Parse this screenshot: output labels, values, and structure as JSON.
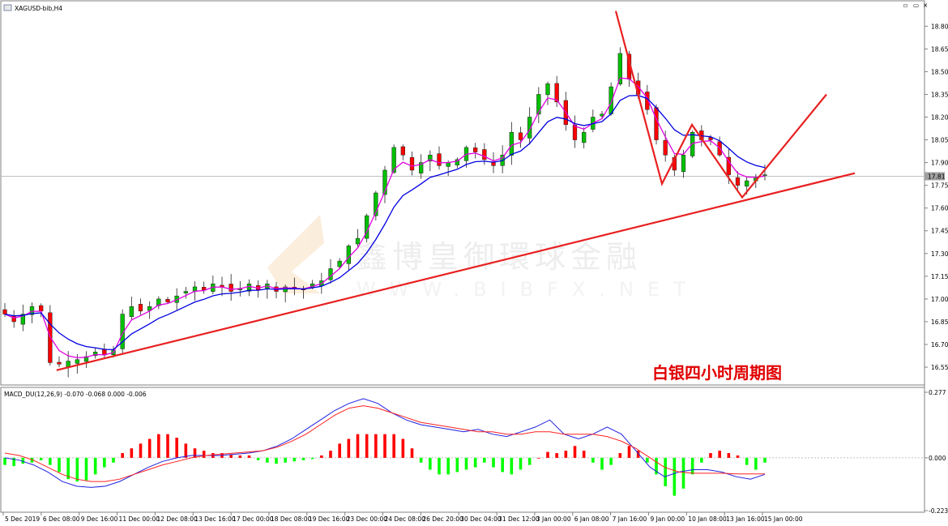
{
  "window": {
    "title": "XAGUSD-bib,H4"
  },
  "window_buttons": [
    "▫",
    "▭",
    "×"
  ],
  "annotation": {
    "text": "白银四小时周期图",
    "color": "#e00000"
  },
  "watermark": {
    "brand": "鑫博皇御環球金融",
    "url": "WWW.BIBFX.NET"
  },
  "colors": {
    "bull": "#00c000",
    "bear": "#ff0000",
    "ma_fast": "#e000e0",
    "ma_slow": "#0000e0",
    "trend": "#e82020",
    "macd_pos": "#ff0000",
    "macd_neg": "#00ff00",
    "macd_main": "#2020e0",
    "macd_signal": "#ff2020"
  },
  "chart_data": [
    {
      "type": "candlestick",
      "symbol": "XAGUSD-bib,H4",
      "ylim": [
        16.47,
        18.93
      ],
      "y_ticks": [
        "18.80",
        "18.65",
        "18.50",
        "18.35",
        "18.20",
        "18.05",
        "17.90",
        "17.75",
        "17.60",
        "17.45",
        "17.30",
        "17.15",
        "17.00",
        "16.85",
        "16.70",
        "16.55"
      ],
      "current_price": "17.81",
      "x_labels": [
        "5 Dec 2019",
        "6 Dec 08:00",
        "9 Dec 16:00",
        "11 Dec 00:00",
        "12 Dec 08:00",
        "13 Dec 16:00",
        "17 Dec 00:00",
        "18 Dec 08:00",
        "19 Dec 16:00",
        "23 Dec 00:00",
        "24 Dec 08:00",
        "26 Dec 20:00",
        "30 Dec 04:00",
        "31 Dec 12:00",
        "3 Jan 00:00",
        "6 Jan 08:00",
        "7 Jan 16:00",
        "9 Jan 00:00",
        "10 Jan 08:00",
        "13 Jan 16:00",
        "15 Jan 00:00"
      ],
      "close_path": [
        16.9,
        16.85,
        16.9,
        16.95,
        16.92,
        16.58,
        16.57,
        16.59,
        16.6,
        16.62,
        16.65,
        16.63,
        16.66,
        16.9,
        16.95,
        16.92,
        16.95,
        17.0,
        16.98,
        17.02,
        17.05,
        17.08,
        17.06,
        17.1,
        17.08,
        17.05,
        17.07,
        17.1,
        17.06,
        17.1,
        17.05,
        17.08,
        17.07,
        17.06,
        17.1,
        17.12,
        17.2,
        17.25,
        17.35,
        17.4,
        17.55,
        17.7,
        17.85,
        18.0,
        17.95,
        17.85,
        17.9,
        17.95,
        17.88,
        17.9,
        17.92,
        18.0,
        17.97,
        17.92,
        17.88,
        17.95,
        18.1,
        18.05,
        18.2,
        18.35,
        18.42,
        18.3,
        18.15,
        18.05,
        18.1,
        18.2,
        18.22,
        18.4,
        18.62,
        18.45,
        18.35,
        18.25,
        18.05,
        17.95,
        17.85,
        17.95,
        18.1,
        18.05,
        18.05,
        17.95,
        17.82,
        17.75,
        17.78,
        17.8,
        17.82
      ]
    },
    {
      "type": "macd",
      "label": "MACD_DU(12,26,9) -0.070 -0.068 0.000 -0.006",
      "ylim": [
        -0.223,
        0.277
      ],
      "y_ticks": [
        "0.277",
        "0.000",
        "-0.223"
      ],
      "histogram": [
        -0.03,
        -0.035,
        -0.025,
        -0.02,
        -0.01,
        -0.03,
        -0.06,
        -0.09,
        -0.1,
        -0.095,
        -0.07,
        -0.04,
        -0.02,
        0.02,
        0.04,
        0.06,
        0.08,
        0.1,
        0.1,
        0.085,
        0.06,
        0.04,
        0.03,
        0.02,
        0.02,
        0.015,
        0.01,
        0.01,
        -0.01,
        -0.02,
        -0.025,
        -0.02,
        -0.015,
        -0.01,
        -0.005,
        0.01,
        0.03,
        0.06,
        0.08,
        0.1,
        0.1,
        0.1,
        0.1,
        0.1,
        0.08,
        0.04,
        -0.02,
        -0.05,
        -0.07,
        -0.07,
        -0.06,
        -0.05,
        -0.04,
        -0.02,
        -0.04,
        -0.06,
        -0.07,
        -0.05,
        -0.03,
        0.0,
        0.025,
        0.02,
        0.03,
        0.05,
        0.03,
        -0.02,
        -0.05,
        -0.03,
        0.02,
        0.05,
        0.03,
        -0.02,
        -0.07,
        -0.12,
        -0.16,
        -0.13,
        -0.07,
        -0.02,
        0.02,
        0.03,
        0.02,
        0.01,
        -0.03,
        -0.05,
        -0.02
      ],
      "macd_line": [
        0.0,
        -0.01,
        -0.03,
        -0.06,
        -0.1,
        -0.12,
        -0.125,
        -0.12,
        -0.1,
        -0.07,
        -0.04,
        -0.015,
        0.0,
        0.01,
        0.01,
        0.01,
        0.015,
        0.02,
        0.03,
        0.05,
        0.08,
        0.12,
        0.16,
        0.2,
        0.23,
        0.25,
        0.23,
        0.19,
        0.16,
        0.14,
        0.13,
        0.12,
        0.11,
        0.12,
        0.1,
        0.09,
        0.11,
        0.13,
        0.16,
        0.1,
        0.08,
        0.1,
        0.13,
        0.1,
        0.03,
        -0.04,
        -0.08,
        -0.06,
        -0.05,
        -0.05,
        -0.06,
        -0.08,
        -0.09,
        -0.07
      ],
      "signal_line": [
        0.02,
        0.01,
        -0.01,
        -0.04,
        -0.07,
        -0.09,
        -0.1,
        -0.1,
        -0.09,
        -0.07,
        -0.05,
        -0.03,
        -0.015,
        0.0,
        0.01,
        0.015,
        0.02,
        0.025,
        0.03,
        0.045,
        0.07,
        0.1,
        0.14,
        0.18,
        0.21,
        0.22,
        0.21,
        0.19,
        0.17,
        0.15,
        0.14,
        0.13,
        0.12,
        0.11,
        0.11,
        0.1,
        0.1,
        0.11,
        0.11,
        0.1,
        0.1,
        0.1,
        0.09,
        0.07,
        0.04,
        0.0,
        -0.04,
        -0.06,
        -0.065,
        -0.065,
        -0.065,
        -0.068,
        -0.068,
        -0.068
      ]
    }
  ]
}
